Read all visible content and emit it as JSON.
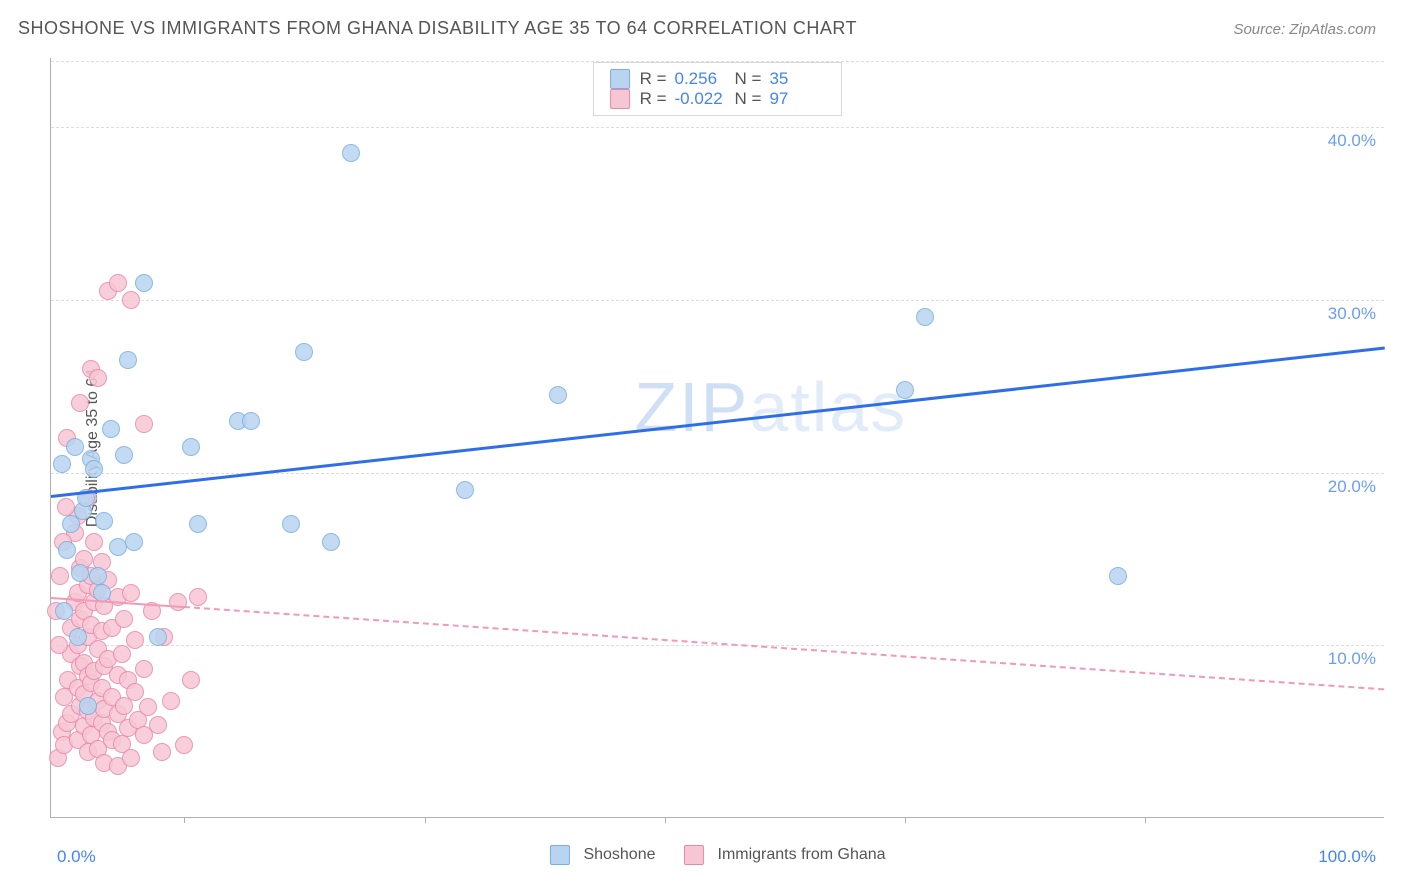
{
  "header": {
    "title": "SHOSHONE VS IMMIGRANTS FROM GHANA DISABILITY AGE 35 TO 64 CORRELATION CHART",
    "source": "Source: ZipAtlas.com"
  },
  "chart": {
    "type": "scatter",
    "ylabel": "Disability Age 35 to 64",
    "xlim": [
      0,
      100
    ],
    "ylim": [
      0,
      44
    ],
    "ytick_positions": [
      10,
      20,
      30,
      40
    ],
    "ytick_labels": [
      "10.0%",
      "20.0%",
      "30.0%",
      "40.0%"
    ],
    "ytick_color": "#6a9ef5",
    "x_left_label": "0.0%",
    "x_right_label": "100.0%",
    "x_label_color": "#4285f4",
    "xtick_positions": [
      10,
      28,
      46,
      64,
      82
    ],
    "grid_color": "#dddddd",
    "axis_color": "#b0b0b0",
    "watermark": "ZIPatlas",
    "series": [
      {
        "name": "Shoshone",
        "fill": "#b8d4f0",
        "stroke": "#7aaee0",
        "marker_radius": 9,
        "points": [
          [
            1.0,
            12.0
          ],
          [
            1.2,
            15.5
          ],
          [
            1.5,
            17.0
          ],
          [
            2.0,
            10.5
          ],
          [
            2.2,
            14.2
          ],
          [
            2.4,
            17.8
          ],
          [
            2.8,
            6.5
          ],
          [
            3.0,
            20.8
          ],
          [
            3.2,
            20.2
          ],
          [
            3.5,
            14.0
          ],
          [
            4.0,
            17.2
          ],
          [
            4.5,
            22.5
          ],
          [
            5.0,
            15.7
          ],
          [
            5.5,
            21.0
          ],
          [
            5.8,
            26.5
          ],
          [
            6.2,
            16.0
          ],
          [
            7.0,
            31.0
          ],
          [
            8.0,
            10.5
          ],
          [
            10.5,
            21.5
          ],
          [
            11.0,
            17.0
          ],
          [
            14.0,
            23.0
          ],
          [
            15.0,
            23.0
          ],
          [
            18.0,
            17.0
          ],
          [
            19.0,
            27.0
          ],
          [
            21.0,
            16.0
          ],
          [
            22.5,
            38.5
          ],
          [
            31.0,
            19.0
          ],
          [
            38.0,
            24.5
          ],
          [
            64.0,
            24.8
          ],
          [
            65.5,
            29.0
          ],
          [
            80.0,
            14.0
          ],
          [
            0.8,
            20.5
          ],
          [
            1.8,
            21.5
          ],
          [
            2.6,
            18.5
          ],
          [
            3.8,
            13.0
          ]
        ],
        "trend": {
          "x1": 0,
          "y1": 18.7,
          "x2": 100,
          "y2": 27.3,
          "stroke": "#2e6fe8",
          "width": 3,
          "dash": "none"
        }
      },
      {
        "name": "Immigrants from Ghana",
        "fill": "#f7c6d4",
        "stroke": "#e888a8",
        "marker_radius": 9,
        "points": [
          [
            0.5,
            3.5
          ],
          [
            0.8,
            5.0
          ],
          [
            1.0,
            4.2
          ],
          [
            1.0,
            7.0
          ],
          [
            1.2,
            5.5
          ],
          [
            1.2,
            22.0
          ],
          [
            1.3,
            8.0
          ],
          [
            1.5,
            6.0
          ],
          [
            1.5,
            9.5
          ],
          [
            1.5,
            11.0
          ],
          [
            1.8,
            12.5
          ],
          [
            1.8,
            16.5
          ],
          [
            2.0,
            4.5
          ],
          [
            2.0,
            7.5
          ],
          [
            2.0,
            10.0
          ],
          [
            2.0,
            13.0
          ],
          [
            2.0,
            17.5
          ],
          [
            2.2,
            6.5
          ],
          [
            2.2,
            8.8
          ],
          [
            2.2,
            11.5
          ],
          [
            2.2,
            14.5
          ],
          [
            2.2,
            24.0
          ],
          [
            2.5,
            5.3
          ],
          [
            2.5,
            7.2
          ],
          [
            2.5,
            9.0
          ],
          [
            2.5,
            12.0
          ],
          [
            2.5,
            15.0
          ],
          [
            2.8,
            3.8
          ],
          [
            2.8,
            6.2
          ],
          [
            2.8,
            8.2
          ],
          [
            2.8,
            10.5
          ],
          [
            2.8,
            13.5
          ],
          [
            2.8,
            18.5
          ],
          [
            3.0,
            4.8
          ],
          [
            3.0,
            7.8
          ],
          [
            3.0,
            11.2
          ],
          [
            3.0,
            14.0
          ],
          [
            3.0,
            26.0
          ],
          [
            3.2,
            5.8
          ],
          [
            3.2,
            8.5
          ],
          [
            3.2,
            12.5
          ],
          [
            3.2,
            16.0
          ],
          [
            3.5,
            4.0
          ],
          [
            3.5,
            6.8
          ],
          [
            3.5,
            9.8
          ],
          [
            3.5,
            13.2
          ],
          [
            3.5,
            25.5
          ],
          [
            3.8,
            5.5
          ],
          [
            3.8,
            7.5
          ],
          [
            3.8,
            10.8
          ],
          [
            3.8,
            14.8
          ],
          [
            4.0,
            3.2
          ],
          [
            4.0,
            6.3
          ],
          [
            4.0,
            8.8
          ],
          [
            4.0,
            12.3
          ],
          [
            4.3,
            5.0
          ],
          [
            4.3,
            9.2
          ],
          [
            4.3,
            13.8
          ],
          [
            4.3,
            30.5
          ],
          [
            4.6,
            4.5
          ],
          [
            4.6,
            7.0
          ],
          [
            4.6,
            11.0
          ],
          [
            5.0,
            3.0
          ],
          [
            5.0,
            6.0
          ],
          [
            5.0,
            8.3
          ],
          [
            5.0,
            12.8
          ],
          [
            5.0,
            31.0
          ],
          [
            5.3,
            4.3
          ],
          [
            5.3,
            9.5
          ],
          [
            5.5,
            6.5
          ],
          [
            5.5,
            11.5
          ],
          [
            5.8,
            5.2
          ],
          [
            5.8,
            8.0
          ],
          [
            6.0,
            3.5
          ],
          [
            6.0,
            13.0
          ],
          [
            6.0,
            30.0
          ],
          [
            6.3,
            7.3
          ],
          [
            6.3,
            10.3
          ],
          [
            6.5,
            5.7
          ],
          [
            7.0,
            4.8
          ],
          [
            7.0,
            8.6
          ],
          [
            7.0,
            22.8
          ],
          [
            7.3,
            6.4
          ],
          [
            7.6,
            12.0
          ],
          [
            8.0,
            5.4
          ],
          [
            8.3,
            3.8
          ],
          [
            8.5,
            10.5
          ],
          [
            9.0,
            6.8
          ],
          [
            9.5,
            12.5
          ],
          [
            10.0,
            4.2
          ],
          [
            10.5,
            8.0
          ],
          [
            11.0,
            12.8
          ],
          [
            0.4,
            12.0
          ],
          [
            0.6,
            10.0
          ],
          [
            0.7,
            14.0
          ],
          [
            0.9,
            16.0
          ],
          [
            1.1,
            18.0
          ]
        ],
        "trend": {
          "x1": 0,
          "y1": 12.8,
          "x2": 100,
          "y2": 7.5,
          "stroke": "#f299b5",
          "width": 2,
          "dash": "dashed",
          "solid_until_x": 10
        }
      }
    ],
    "legend_top": {
      "rows": [
        {
          "swatch_fill": "#b8d4f0",
          "swatch_stroke": "#7aaee0",
          "r_label": "R =",
          "r_value": "0.256",
          "n_label": "N =",
          "n_value": "35"
        },
        {
          "swatch_fill": "#f7c6d4",
          "swatch_stroke": "#e888a8",
          "r_label": "R =",
          "r_value": "-0.022",
          "n_label": "N =",
          "n_value": "97"
        }
      ]
    },
    "legend_bottom": [
      {
        "swatch_fill": "#b8d4f0",
        "swatch_stroke": "#7aaee0",
        "label": "Shoshone"
      },
      {
        "swatch_fill": "#f7c6d4",
        "swatch_stroke": "#e888a8",
        "label": "Immigrants from Ghana"
      }
    ]
  }
}
